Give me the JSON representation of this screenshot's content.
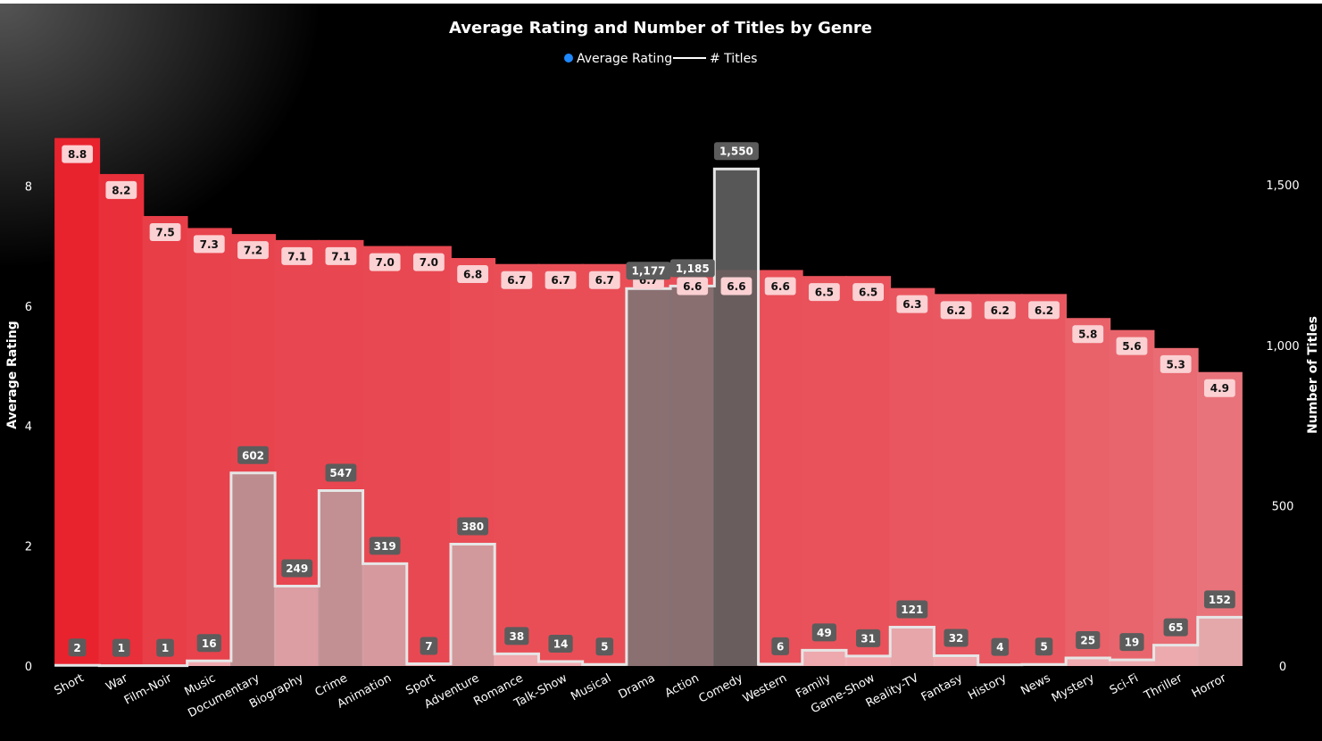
{
  "chart_data": {
    "type": "bar",
    "title": "Average Rating and Number of Titles by Genre",
    "legend": {
      "position": "top-center",
      "items": [
        {
          "label": "Average Rating",
          "marker": "dot",
          "color": "#1e88ff"
        },
        {
          "label": "# Titles",
          "marker": "line",
          "color": "#ffffff"
        }
      ]
    },
    "ylabel": "Average Rating",
    "y2label": "Number of Titles",
    "ylim": [
      0,
      9.3
    ],
    "y2lim": [
      0,
      1740
    ],
    "yticks": [
      "0",
      "2",
      "4",
      "6",
      "8"
    ],
    "y2ticks": [
      "0",
      "500",
      "1,000",
      "1,500"
    ],
    "categories": [
      "Short",
      "War",
      "Film-Noir",
      "Music",
      "Documentary",
      "Biography",
      "Crime",
      "Animation",
      "Sport",
      "Adventure",
      "Romance",
      "Talk-Show",
      "Musical",
      "Drama",
      "Action",
      "Comedy",
      "Western",
      "Family",
      "Game-Show",
      "Reality-TV",
      "Fantasy",
      "History",
      "News",
      "Mystery",
      "Sci-Fi",
      "Thriller",
      "Horror"
    ],
    "series": [
      {
        "name": "Average Rating",
        "axis": "left",
        "values": [
          8.8,
          8.2,
          7.5,
          7.3,
          7.2,
          7.1,
          7.1,
          7.0,
          7.0,
          6.8,
          6.7,
          6.7,
          6.7,
          6.7,
          6.6,
          6.6,
          6.6,
          6.5,
          6.5,
          6.3,
          6.2,
          6.2,
          6.2,
          5.8,
          5.6,
          5.3,
          4.9
        ],
        "labels": [
          "8.8",
          "8.2",
          "7.5",
          "7.3",
          "7.2",
          "7.1",
          "7.1",
          "7.0",
          "7.0",
          "6.8",
          "6.7",
          "6.7",
          "6.7",
          "6.7",
          "6.6",
          "6.6",
          "6.6",
          "6.5",
          "6.5",
          "6.3",
          "6.2",
          "6.2",
          "6.2",
          "5.8",
          "5.6",
          "5.3",
          "4.9"
        ]
      },
      {
        "name": "# Titles",
        "axis": "right",
        "values": [
          2,
          1,
          1,
          16,
          602,
          249,
          547,
          319,
          7,
          380,
          38,
          14,
          5,
          1177,
          1185,
          1550,
          6,
          49,
          31,
          121,
          32,
          4,
          5,
          25,
          19,
          65,
          152
        ],
        "labels": [
          "2",
          "1",
          "1",
          "16",
          "602",
          "249",
          "547",
          "319",
          "7",
          "380",
          "38",
          "14",
          "5",
          "1,177",
          "1,185",
          "1,550",
          "6",
          "49",
          "31",
          "121",
          "32",
          "4",
          "5",
          "25",
          "19",
          "65",
          "152"
        ]
      }
    ],
    "grid": false,
    "colors": {
      "background": "#000000",
      "rating_high": "#e8232e",
      "rating_low": "#e9737b",
      "titles_low": "#f2b4b8",
      "titles_high": "#5e5e5e",
      "step_line": "#e6e6e6",
      "count_label_bg": "#5c5c5c",
      "rating_label_bg": "#fbd1d3"
    }
  }
}
